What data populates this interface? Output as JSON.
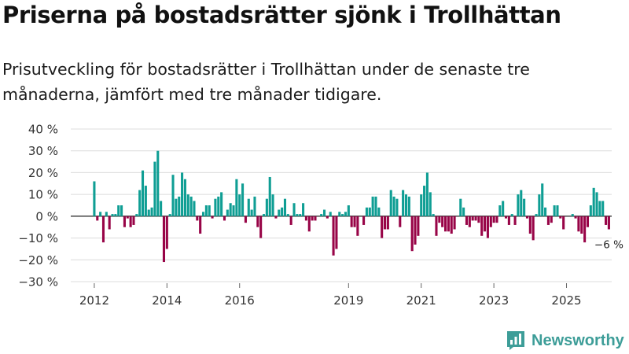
{
  "header": {
    "title": "Priserna på bostadsrätter sjönk i Trollhättan",
    "subtitle": "Prisutveckling för bostadsrätter i Trollhättan under de senaste tre månaderna, jämfört med tre månader tidigare."
  },
  "brand": {
    "name": "Newsworthy",
    "icon": "newsworthy-logo-icon"
  },
  "colors": {
    "positive": "#0f9e94",
    "negative": "#980447",
    "grid": "#dcdcdc",
    "zero_line": "#333333",
    "brand": "#3d9d98"
  },
  "chart_data": {
    "type": "bar",
    "title": "Priserna på bostadsrätter sjönk i Trollhättan",
    "ylabel": "",
    "xlabel": "",
    "ylim": [
      -30,
      40
    ],
    "yticks": [
      -30,
      -20,
      -10,
      0,
      10,
      20,
      30,
      40
    ],
    "ytick_labels": [
      "−30 %",
      "−20 %",
      "−10 %",
      "0 %",
      "10 %",
      "20 %",
      "30 %",
      "40 %"
    ],
    "xtick_labels": [
      "2012",
      "2014",
      "2016",
      "2019",
      "2021",
      "2023",
      "2025"
    ],
    "xtick_index": [
      0,
      24,
      48,
      84,
      108,
      132,
      156
    ],
    "x_start_label": "2012-01",
    "x_unit": "month",
    "last_value_label": "−6 %",
    "values": [
      16,
      -2,
      2,
      -12,
      2,
      -6,
      1,
      1,
      5,
      5,
      -5,
      -1,
      -5,
      -4,
      1,
      12,
      21,
      14,
      3,
      4,
      25,
      30,
      7,
      -21,
      -15,
      1,
      19,
      8,
      9,
      20,
      17,
      10,
      9,
      7,
      -2,
      -8,
      2,
      5,
      5,
      -1,
      8,
      9,
      11,
      -2,
      3,
      6,
      5,
      17,
      10,
      15,
      -3,
      8,
      3,
      9,
      -5,
      -10,
      1,
      8,
      18,
      10,
      -1,
      3,
      4,
      8,
      1,
      -4,
      6,
      1,
      1,
      6,
      -2,
      -7,
      -2,
      -2,
      0,
      1,
      3,
      -1,
      2,
      -18,
      -15,
      2,
      1,
      2,
      5,
      -5,
      -5,
      -9,
      0,
      -4,
      4,
      4,
      9,
      9,
      4,
      -10,
      -6,
      -6,
      12,
      9,
      8,
      -5,
      12,
      10,
      9,
      -16,
      -13,
      -9,
      10,
      14,
      20,
      11,
      1,
      -9,
      -3,
      -5,
      -7,
      -7,
      -8,
      -6,
      0,
      8,
      4,
      -4,
      -5,
      -2,
      -2,
      -3,
      -9,
      -7,
      -10,
      -5,
      -3,
      -3,
      5,
      7,
      -1,
      -4,
      1,
      -4,
      10,
      12,
      8,
      -1,
      -8,
      -11,
      1,
      10,
      15,
      4,
      -4,
      -3,
      5,
      5,
      -1,
      -6,
      0,
      0,
      1,
      -1,
      -7,
      -8,
      -12,
      -5,
      5,
      13,
      11,
      7,
      7,
      -4,
      -6
    ]
  }
}
